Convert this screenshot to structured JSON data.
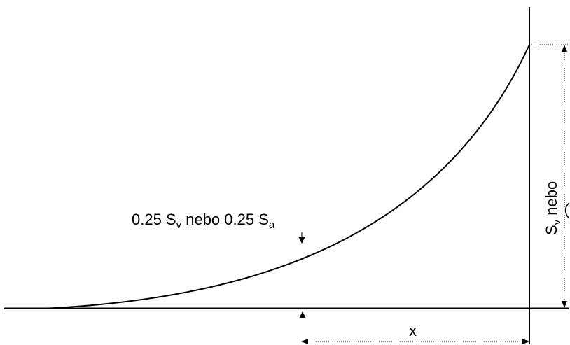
{
  "labels": {
    "quarter": {
      "p1": "0.25 S",
      "s1": "v",
      "p2": " nebo 0.25 S",
      "s2": "a"
    },
    "height": {
      "p1": "S",
      "s1": "v",
      "p2": " nebo"
    },
    "x": "x"
  },
  "colors": {
    "stroke": "#000000",
    "background": "#ffffff"
  }
}
